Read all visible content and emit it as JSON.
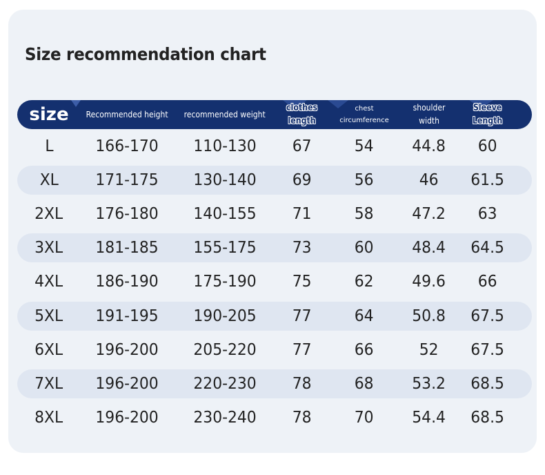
{
  "title": "Size recommendation chart",
  "columns": [
    {
      "key": "size",
      "lines": [
        "size"
      ]
    },
    {
      "key": "height",
      "lines": [
        "Recommended height"
      ]
    },
    {
      "key": "weight",
      "lines": [
        "recommended weight"
      ]
    },
    {
      "key": "length",
      "lines": [
        "clothes",
        "length"
      ]
    },
    {
      "key": "chest",
      "lines": [
        "chest",
        "circumference"
      ]
    },
    {
      "key": "shoulder",
      "lines": [
        "shoulder",
        "width"
      ]
    },
    {
      "key": "sleeve",
      "lines": [
        "Sleeve",
        "Length"
      ]
    }
  ],
  "rows": [
    [
      "L",
      "166-170",
      "110-130",
      "67",
      "54",
      "44.8",
      "60"
    ],
    [
      "XL",
      "171-175",
      "130-140",
      "69",
      "56",
      "46",
      "61.5"
    ],
    [
      "2XL",
      "176-180",
      "140-155",
      "71",
      "58",
      "47.2",
      "63"
    ],
    [
      "3XL",
      "181-185",
      "155-175",
      "73",
      "60",
      "48.4",
      "64.5"
    ],
    [
      "4XL",
      "186-190",
      "175-190",
      "75",
      "62",
      "49.6",
      "66"
    ],
    [
      "5XL",
      "191-195",
      "190-205",
      "77",
      "64",
      "50.8",
      "67.5"
    ],
    [
      "6XL",
      "196-200",
      "205-220",
      "77",
      "66",
      "52",
      "67.5"
    ],
    [
      "7XL",
      "196-200",
      "220-230",
      "78",
      "68",
      "53.2",
      "68.5"
    ],
    [
      "8XL",
      "196-200",
      "230-240",
      "78",
      "70",
      "54.4",
      "68.5"
    ]
  ],
  "colors": {
    "header_bg": "#14306f",
    "card_bg": "#eef2f7",
    "row_shade": "#dfe6f1",
    "text": "#222222"
  }
}
